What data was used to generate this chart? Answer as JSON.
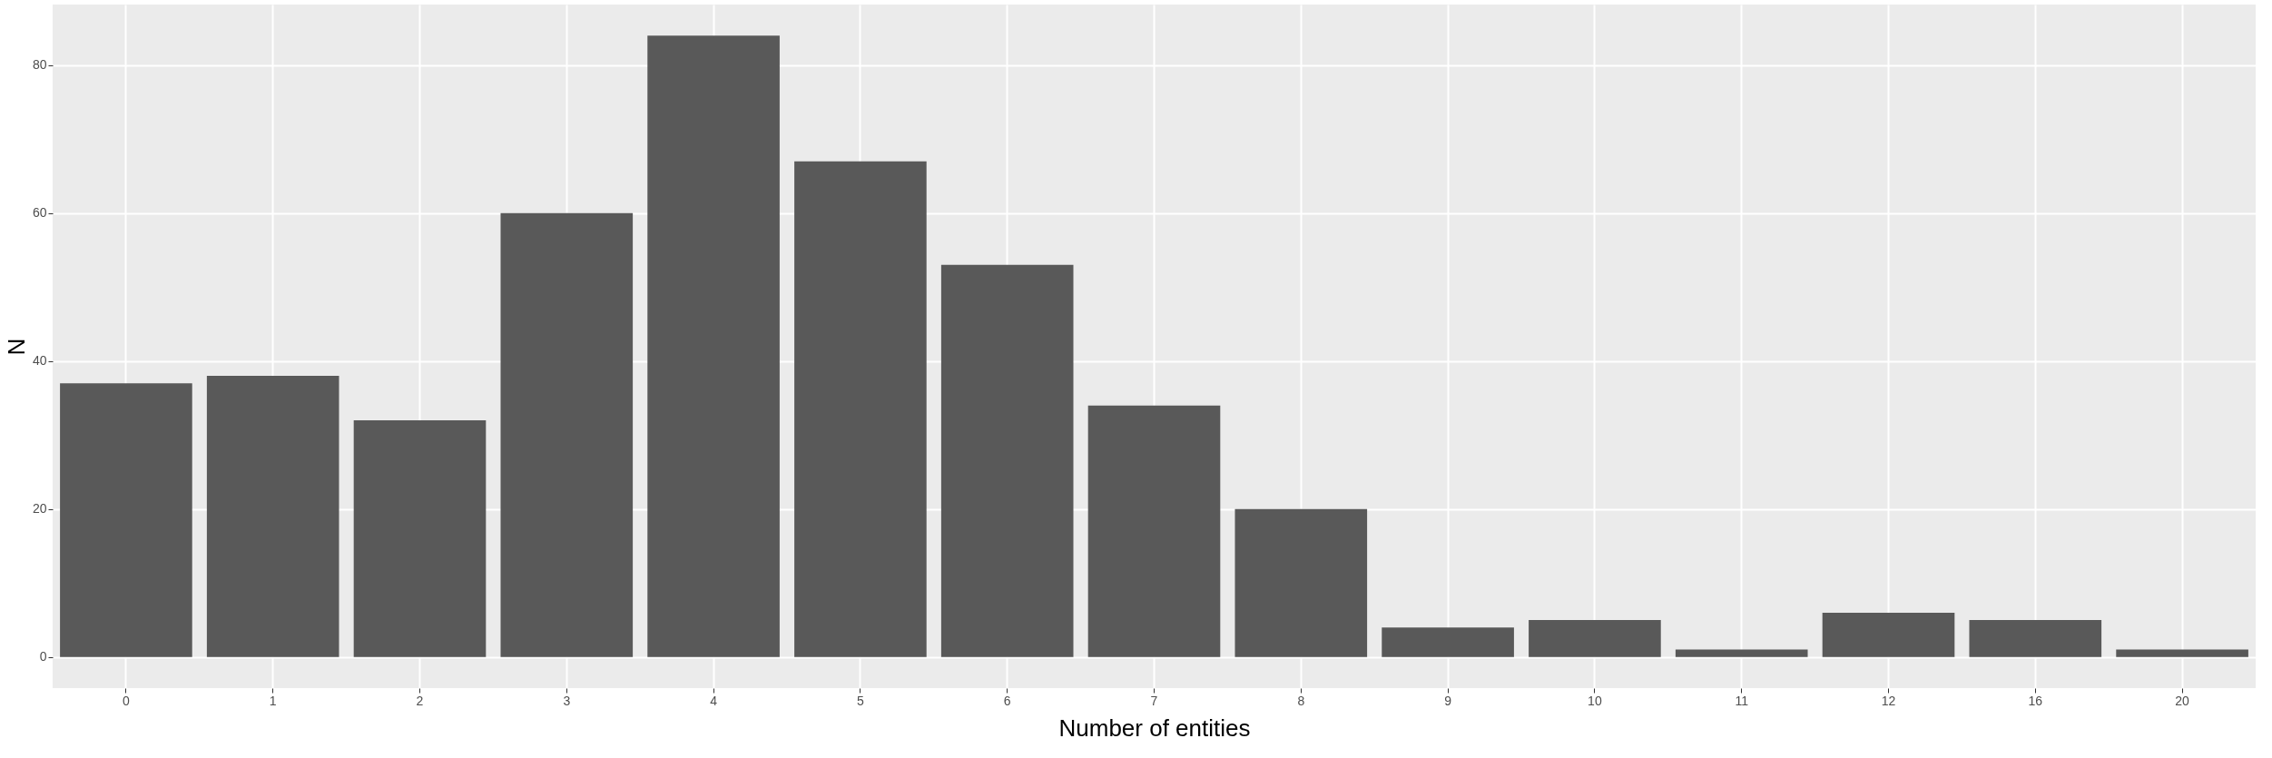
{
  "chart_data": {
    "type": "bar",
    "xlabel": "Number of entities",
    "ylabel": "N",
    "categories": [
      "0",
      "1",
      "2",
      "3",
      "4",
      "5",
      "6",
      "7",
      "8",
      "9",
      "10",
      "11",
      "12",
      "16",
      "20"
    ],
    "series": [
      {
        "color": "#595959",
        "values": [
          37,
          38,
          32,
          60,
          84,
          67,
          53,
          34,
          20,
          4,
          5,
          1,
          6,
          5,
          1
        ]
      }
    ],
    "ylim": [
      -4.2,
      88.2
    ],
    "yticks": [
      0,
      20,
      40,
      60,
      80
    ],
    "grid": true
  }
}
